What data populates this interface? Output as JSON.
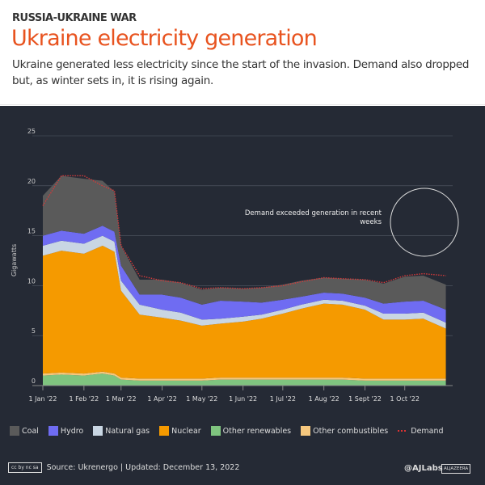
{
  "header": {
    "kicker": "RUSSIA-UKRAINE WAR",
    "title": "Ukraine electricity generation",
    "subtitle": "Ukraine generated less electricity since the start of the invasion. Demand also dropped but, as winter sets in, it is rising again."
  },
  "chart_data": {
    "type": "area",
    "stacked": true,
    "ylabel": "Gigawatts",
    "ylim": [
      0,
      25
    ],
    "yticks": [
      0,
      5,
      10,
      15,
      20,
      25
    ],
    "xtick_labels": [
      "1 Jan '22",
      "1 Feb '22",
      "1 Mar '22",
      "1 Apr '22",
      "1 May '22",
      "1 Jun '22",
      "1 Jul '22",
      "1 Aug '22",
      "1 Sept '22",
      "1 Oct '22"
    ],
    "grid": true,
    "legend_position": "bottom",
    "annotation": "Demand exceeded generation in recent weeks",
    "x": [
      "2022-01-01",
      "2022-01-15",
      "2022-02-01",
      "2022-02-15",
      "2022-02-24",
      "2022-03-01",
      "2022-03-15",
      "2022-04-01",
      "2022-04-15",
      "2022-05-01",
      "2022-05-15",
      "2022-06-01",
      "2022-06-15",
      "2022-07-01",
      "2022-07-15",
      "2022-08-01",
      "2022-08-15",
      "2022-09-01",
      "2022-09-15",
      "2022-10-01",
      "2022-10-15",
      "2022-11-01"
    ],
    "series": [
      {
        "name": "Other renewables",
        "color": "#7fc47f",
        "values": [
          1,
          1.1,
          1,
          1.2,
          1,
          0.6,
          0.5,
          0.5,
          0.5,
          0.5,
          0.6,
          0.6,
          0.6,
          0.6,
          0.6,
          0.6,
          0.6,
          0.5,
          0.5,
          0.5,
          0.5,
          0.5
        ]
      },
      {
        "name": "Other combustibles",
        "color": "#f5c77e",
        "values": [
          0.2,
          0.2,
          0.2,
          0.2,
          0.2,
          0.2,
          0.2,
          0.2,
          0.2,
          0.2,
          0.2,
          0.2,
          0.2,
          0.2,
          0.2,
          0.2,
          0.2,
          0.2,
          0.2,
          0.2,
          0.2,
          0.2
        ]
      },
      {
        "name": "Nuclear",
        "color": "#f59a00",
        "values": [
          11.8,
          12.2,
          12,
          12.6,
          12.2,
          8.7,
          6.4,
          6.1,
          5.8,
          5.3,
          5.4,
          5.6,
          5.9,
          6.4,
          6.9,
          7.4,
          7.3,
          6.9,
          5.9,
          5.9,
          6,
          5
        ]
      },
      {
        "name": "Natural gas",
        "color": "#c9d6e3",
        "values": [
          1,
          1,
          1,
          1,
          1,
          1,
          1,
          0.8,
          0.8,
          0.6,
          0.5,
          0.5,
          0.4,
          0.4,
          0.4,
          0.4,
          0.4,
          0.4,
          0.6,
          0.6,
          0.6,
          0.6
        ]
      },
      {
        "name": "Hydro",
        "color": "#6f6cf2",
        "values": [
          1,
          1,
          1,
          1,
          1,
          1.5,
          1,
          1.5,
          1.5,
          1.5,
          1.8,
          1.5,
          1.2,
          1,
          0.8,
          0.7,
          0.7,
          0.8,
          1,
          1.2,
          1.2,
          1.3
        ]
      },
      {
        "name": "Coal",
        "color": "#5a5a5a",
        "values": [
          4,
          5.5,
          5.5,
          4.5,
          4,
          2,
          1.5,
          1.5,
          1.5,
          1.5,
          1.3,
          1.3,
          1.5,
          1.5,
          1.6,
          1.5,
          1.5,
          1.8,
          2,
          2.5,
          2.5,
          2.5
        ]
      }
    ],
    "demand": {
      "name": "Demand",
      "color": "#d33a3a",
      "values": [
        18,
        21,
        21,
        20,
        19.5,
        14,
        11,
        10.5,
        10.3,
        9.7,
        9.8,
        9.7,
        9.8,
        10,
        10.4,
        10.8,
        10.7,
        10.6,
        10.3,
        11,
        11.2,
        11
      ]
    }
  },
  "footer": {
    "source": "Source: Ukrenergo  |  Updated:  December 13, 2022",
    "license": "cc by nc sa",
    "handle": "@AJLabs",
    "brand": "ALJAZEERA"
  }
}
